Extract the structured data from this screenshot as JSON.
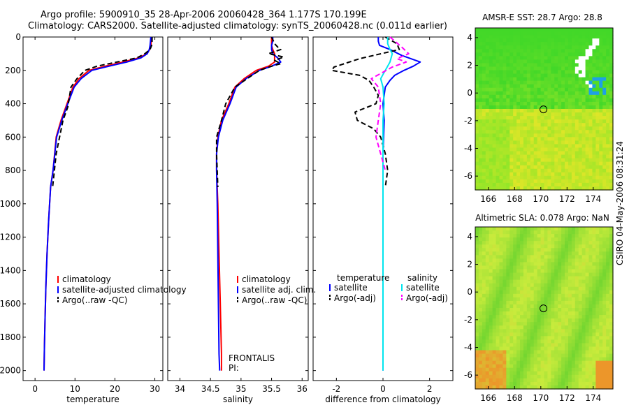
{
  "header": {
    "line1": "Argo profile:  5900910_35 28-Apr-2006 20060428_364 1.177S 170.199E",
    "line2": "Climatology: CARS2000. Satellite-adjusted climatology: synTS_20060428.nc (0.011d earlier)"
  },
  "footer": {
    "stamp": "CSIRO 04-May-2006 08:31:24"
  },
  "colors": {
    "climatology": "#ff0000",
    "satellite": "#0000ff",
    "argo": "#000000",
    "sat_diff": "#00e5ee",
    "argo_adj": "#ff00ff"
  },
  "chart_data": [
    {
      "type": "line",
      "id": "temperature",
      "xlabel": "temperature",
      "ylabel": "",
      "xlim": [
        -3,
        32
      ],
      "ylim": [
        2060,
        0
      ],
      "xticks": [
        0,
        10,
        20,
        30
      ],
      "yticks": [
        0,
        200,
        400,
        600,
        800,
        1000,
        1200,
        1400,
        1600,
        1800,
        2000
      ],
      "legend": [
        "climatology",
        "satellite-adjusted climatology",
        "Argo(..raw -QC)"
      ],
      "series": [
        {
          "name": "climatology",
          "color": "#ff0000",
          "dash": "",
          "x": [
            29.2,
            29.1,
            29.0,
            28.7,
            28.0,
            26.0,
            22.0,
            17.5,
            13.5,
            11.0,
            9.5,
            8.0,
            6.5,
            5.3,
            4.5,
            3.9,
            3.4,
            3.0,
            2.7,
            2.5,
            2.35,
            2.25
          ],
          "y": [
            0,
            25,
            50,
            75,
            100,
            125,
            150,
            175,
            200,
            250,
            300,
            400,
            500,
            600,
            800,
            900,
            1100,
            1300,
            1500,
            1700,
            1850,
            2000
          ]
        },
        {
          "name": "satellite-adjusted climatology",
          "color": "#0000ff",
          "dash": "",
          "x": [
            29.0,
            28.9,
            28.8,
            28.6,
            28.1,
            26.5,
            23.0,
            18.5,
            14.2,
            11.5,
            9.8,
            8.2,
            6.7,
            5.4,
            4.5,
            3.9,
            3.4,
            3.0,
            2.7,
            2.5,
            2.35,
            2.25
          ],
          "y": [
            0,
            25,
            50,
            75,
            100,
            125,
            150,
            175,
            200,
            250,
            300,
            400,
            500,
            600,
            800,
            900,
            1100,
            1300,
            1500,
            1700,
            1850,
            2000
          ]
        },
        {
          "name": "Argo(..raw -QC)",
          "color": "#000000",
          "dash": "7,4",
          "x": [
            29.3,
            29.3,
            29.2,
            28.8,
            27.5,
            25.5,
            20.5,
            15.5,
            12.5,
            10.5,
            9.0,
            8.2,
            7.0,
            5.3,
            4.4
          ],
          "y": [
            0,
            25,
            50,
            75,
            100,
            125,
            150,
            175,
            200,
            250,
            300,
            420,
            500,
            700,
            900
          ]
        }
      ]
    },
    {
      "type": "line",
      "id": "salinity",
      "xlabel": "salinity",
      "ylabel": "",
      "xlim": [
        33.8,
        36.1
      ],
      "ylim": [
        2060,
        0
      ],
      "xticks": [
        34,
        34.5,
        35,
        35.5,
        36
      ],
      "yticks": [
        0,
        200,
        400,
        600,
        800,
        1000,
        1200,
        1400,
        1600,
        1800,
        2000
      ],
      "legend": [
        "climatology",
        "satellite adj. clim.",
        "Argo(..raw -QC)"
      ],
      "annotation": [
        "FRONTALIS",
        "PI:"
      ],
      "series": [
        {
          "name": "climatology",
          "color": "#ff0000",
          "dash": "",
          "x": [
            35.5,
            35.5,
            35.5,
            35.52,
            35.55,
            35.55,
            35.55,
            35.45,
            35.25,
            35.05,
            34.9,
            34.8,
            34.68,
            34.62,
            34.6,
            34.6,
            34.62,
            34.64,
            34.66,
            34.68,
            34.68
          ],
          "y": [
            0,
            25,
            50,
            75,
            100,
            125,
            150,
            175,
            200,
            250,
            300,
            400,
            500,
            600,
            700,
            800,
            1000,
            1300,
            1600,
            1900,
            2000
          ]
        },
        {
          "name": "satellite adj. clim.",
          "color": "#0000ff",
          "dash": "",
          "x": [
            35.52,
            35.52,
            35.5,
            35.5,
            35.52,
            35.6,
            35.65,
            35.5,
            35.3,
            35.08,
            34.92,
            34.82,
            34.7,
            34.63,
            34.6,
            34.6,
            34.61,
            34.62,
            34.63,
            34.64,
            34.65
          ],
          "y": [
            0,
            25,
            50,
            75,
            100,
            125,
            150,
            175,
            200,
            250,
            300,
            400,
            500,
            600,
            700,
            800,
            1000,
            1300,
            1600,
            1900,
            2000
          ]
        },
        {
          "name": "Argo(..raw -QC)",
          "color": "#000000",
          "dash": "7,4",
          "x": [
            35.5,
            35.55,
            35.6,
            35.65,
            35.45,
            35.7,
            35.55,
            35.65,
            35.5,
            35.3,
            35.1,
            34.9,
            34.75,
            34.68,
            34.6,
            34.6,
            34.62
          ],
          "y": [
            0,
            40,
            60,
            75,
            100,
            120,
            140,
            160,
            175,
            200,
            250,
            300,
            400,
            500,
            600,
            700,
            900
          ]
        }
      ]
    },
    {
      "type": "line",
      "id": "difference",
      "xlabel": "difference from climatology",
      "ylabel": "",
      "xlim": [
        -3,
        3
      ],
      "ylim": [
        2060,
        0
      ],
      "xticks": [
        -2,
        0,
        2
      ],
      "yticks": [
        0,
        200,
        400,
        600,
        800,
        1000,
        1200,
        1400,
        1600,
        1800,
        2000
      ],
      "legend_titles": [
        "temperature",
        "salinity"
      ],
      "legend": [
        "satellite",
        "Argo(-adj)",
        "satellite",
        "Argo(-adj)"
      ],
      "series": [
        {
          "name": "temperature satellite",
          "color": "#0000ff",
          "dash": "",
          "x": [
            -0.2,
            -0.2,
            -0.15,
            0.3,
            0.8,
            1.6,
            1.3,
            0.9,
            0.5,
            0.3,
            0.1,
            0,
            0.05,
            0,
            0,
            0,
            0,
            0
          ],
          "y": [
            0,
            25,
            50,
            75,
            110,
            150,
            175,
            200,
            230,
            260,
            300,
            400,
            500,
            700,
            900,
            1200,
            1600,
            2000
          ]
        },
        {
          "name": "temperature Argo(-adj)",
          "color": "#000000",
          "dash": "7,4",
          "x": [
            0.1,
            0.6,
            0.7,
            -1.0,
            -2.1,
            -2.2,
            -1.0,
            -0.6,
            -0.4,
            -0.2,
            -0.3,
            -1.2,
            -1.1,
            -0.4,
            -0.1,
            0.1,
            0.2,
            0.1
          ],
          "y": [
            0,
            40,
            75,
            130,
            180,
            200,
            230,
            260,
            300,
            350,
            400,
            450,
            500,
            550,
            600,
            700,
            800,
            900
          ]
        },
        {
          "name": "salinity satellite",
          "color": "#00e5ee",
          "dash": "",
          "x": [
            0.2,
            0.2,
            0.3,
            0.4,
            0.3,
            0.1,
            -0.1,
            0,
            0.05,
            0,
            0,
            0,
            0,
            0,
            0,
            0
          ],
          "y": [
            0,
            40,
            75,
            100,
            150,
            200,
            250,
            300,
            400,
            500,
            700,
            900,
            1200,
            1500,
            1800,
            2000
          ]
        },
        {
          "name": "salinity Argo(-adj)",
          "color": "#ff00ff",
          "dash": "7,4",
          "x": [
            0.3,
            0.8,
            1.1,
            0.6,
            1.0,
            0.4,
            -0.5,
            -0.2,
            -0.1,
            -0.2,
            -0.3,
            -0.1,
            0.1
          ],
          "y": [
            0,
            60,
            100,
            130,
            150,
            180,
            250,
            300,
            400,
            500,
            600,
            700,
            800
          ]
        }
      ]
    },
    {
      "type": "heatmap",
      "id": "sst-map",
      "title": "AMSR-E SST: 28.7 Argo: 28.8",
      "xlim": [
        165,
        175.5
      ],
      "ylim": [
        -7,
        4.7
      ],
      "xticks": [
        166,
        168,
        170,
        172,
        174
      ],
      "yticks": [
        -6,
        -4,
        -2,
        0,
        2,
        4
      ],
      "float_position": [
        170.2,
        -1.18
      ]
    },
    {
      "type": "heatmap",
      "id": "sla-map",
      "title": "Altimetric SLA: 0.078 Argo: NaN",
      "xlim": [
        165,
        175.5
      ],
      "ylim": [
        -7,
        4.7
      ],
      "xticks": [
        166,
        168,
        170,
        172,
        174
      ],
      "yticks": [
        -6,
        -4,
        -2,
        0,
        2,
        4
      ],
      "float_position": [
        170.2,
        -1.18
      ]
    }
  ]
}
